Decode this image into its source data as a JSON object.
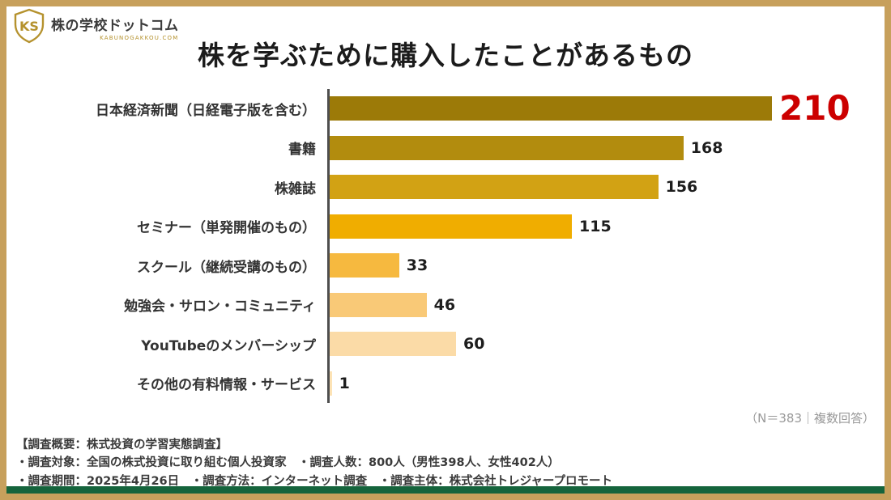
{
  "page": {
    "frame_color": "#C7A05C",
    "bottom_strip_color": "#15643C"
  },
  "header": {
    "logo": {
      "monogram": "KS",
      "brand": "株の学校ドットコム",
      "brand_sub": "KABUNOGAKKOU.COM"
    },
    "title": "株を学ぶために購入したことがあるもの"
  },
  "chart_data": {
    "type": "bar",
    "orientation": "horizontal",
    "title": "株を学ぶために購入したことがあるもの",
    "categories": [
      "日本経済新聞（日経電子版を含む）",
      "書籍",
      "株雑誌",
      "セミナー（単発開催のもの）",
      "スクール（継続受講のもの）",
      "勉強会・サロン・コミュニティ",
      "YouTubeのメンバーシップ",
      "その他の有料情報・サービス"
    ],
    "values": [
      210,
      168,
      156,
      115,
      33,
      46,
      60,
      1
    ],
    "bar_colors": [
      "#9C7A08",
      "#B28C0E",
      "#D2A214",
      "#F0AD00",
      "#F6B93F",
      "#F9C977",
      "#FBDBA7",
      "#FDE3B5"
    ],
    "highlight_index": 0,
    "highlight_color": "#CC0000",
    "value_color": "#1d1d1d",
    "xlim": [
      0,
      230
    ],
    "legend": "none",
    "grid": false,
    "note": "（N＝383｜複数回答）"
  },
  "footer": {
    "line1": "【調査概要：株式投資の学習実態調査】",
    "line2": "・調査対象：全国の株式投資に取り組む個人投資家　・調査人数：800人（男性398人、女性402人）",
    "line3": "・調査期間：2025年4月26日　・調査方法：インターネット調査　・調査主体：株式会社トレジャープロモート"
  }
}
